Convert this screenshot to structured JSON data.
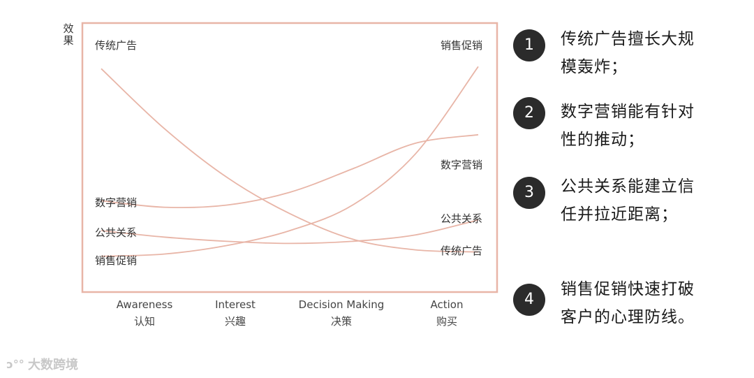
{
  "chart_data": {
    "type": "line",
    "ylabel": "效果",
    "x_categories": [
      {
        "en": "Awareness",
        "zh": "认知"
      },
      {
        "en": "Interest",
        "zh": "兴趣"
      },
      {
        "en": "Decision Making",
        "zh": "决策"
      },
      {
        "en": "Action",
        "zh": "购买"
      }
    ],
    "x_range": [
      0,
      3
    ],
    "y_range": [
      0,
      10
    ],
    "y_ticks_shown": false,
    "grid": false,
    "series": [
      {
        "name": "传统广告",
        "x": [
          0,
          0.5,
          1,
          1.5,
          2,
          2.5,
          3
        ],
        "y": [
          9.4,
          6.6,
          4.3,
          2.6,
          1.4,
          0.9,
          0.8
        ]
      },
      {
        "name": "销售促销",
        "x": [
          0,
          0.5,
          1,
          1.5,
          2,
          2.5,
          3
        ],
        "y": [
          0.6,
          0.7,
          1.1,
          1.8,
          3.0,
          5.4,
          9.5
        ]
      },
      {
        "name": "数字营销",
        "x": [
          0,
          0.5,
          1,
          1.5,
          2,
          2.5,
          3
        ],
        "y": [
          3.2,
          2.9,
          3.0,
          3.6,
          4.7,
          5.9,
          6.3
        ]
      },
      {
        "name": "公共关系",
        "x": [
          0,
          0.5,
          1,
          1.5,
          2,
          2.5,
          3
        ],
        "y": [
          1.8,
          1.5,
          1.3,
          1.2,
          1.3,
          1.6,
          2.3
        ]
      }
    ],
    "start_labels": [
      "传统广告",
      "数字营销",
      "公共关系",
      "销售促销"
    ],
    "end_labels": [
      "销售促销",
      "数字营销",
      "公共关系",
      "传统广告"
    ],
    "line_color": "#e8b5a7",
    "frame_color": "#e8b5a7"
  },
  "points": [
    {
      "num": "1",
      "text": "传统广告擅长大规模轰炸；"
    },
    {
      "num": "2",
      "text": "数字营销能有针对性的推动；"
    },
    {
      "num": "3",
      "text": "公共关系能建立信任并拉近距离；"
    },
    {
      "num": "4",
      "text": "销售促销快速打破客户的心理防线。"
    }
  ],
  "watermark": {
    "text": "大数跨境"
  }
}
